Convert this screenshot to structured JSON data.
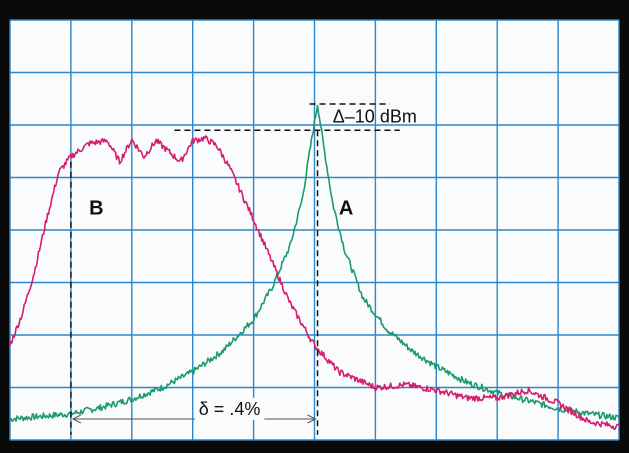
{
  "chart_data": {
    "type": "line",
    "grid": true,
    "xlim": [
      0,
      10
    ],
    "ylim": [
      0,
      8
    ],
    "x_divisions": 10,
    "y_divisions": 8,
    "series": [
      {
        "name": "A",
        "color": "#1d9a6c",
        "points": [
          [
            0.0,
            0.4
          ],
          [
            0.5,
            0.45
          ],
          [
            1.0,
            0.5
          ],
          [
            1.5,
            0.62
          ],
          [
            2.0,
            0.78
          ],
          [
            2.5,
            1.0
          ],
          [
            3.0,
            1.3
          ],
          [
            3.5,
            1.7
          ],
          [
            4.0,
            2.3
          ],
          [
            4.3,
            2.9
          ],
          [
            4.6,
            3.7
          ],
          [
            4.8,
            4.6
          ],
          [
            4.95,
            5.7
          ],
          [
            5.05,
            6.4
          ],
          [
            5.15,
            5.6
          ],
          [
            5.3,
            4.5
          ],
          [
            5.5,
            3.6
          ],
          [
            5.8,
            2.7
          ],
          [
            6.2,
            2.1
          ],
          [
            6.6,
            1.7
          ],
          [
            7.0,
            1.4
          ],
          [
            7.5,
            1.1
          ],
          [
            8.0,
            0.9
          ],
          [
            8.5,
            0.75
          ],
          [
            9.0,
            0.6
          ],
          [
            9.5,
            0.5
          ],
          [
            10.0,
            0.42
          ]
        ]
      },
      {
        "name": "B",
        "color": "#d61e6e",
        "points": [
          [
            0.0,
            1.8
          ],
          [
            0.2,
            2.4
          ],
          [
            0.4,
            3.2
          ],
          [
            0.6,
            4.2
          ],
          [
            0.8,
            5.1
          ],
          [
            1.0,
            5.4
          ],
          [
            1.3,
            5.65
          ],
          [
            1.6,
            5.7
          ],
          [
            1.8,
            5.3
          ],
          [
            2.0,
            5.72
          ],
          [
            2.2,
            5.4
          ],
          [
            2.4,
            5.7
          ],
          [
            2.6,
            5.5
          ],
          [
            2.8,
            5.3
          ],
          [
            3.0,
            5.7
          ],
          [
            3.2,
            5.75
          ],
          [
            3.4,
            5.6
          ],
          [
            3.6,
            5.2
          ],
          [
            3.8,
            4.7
          ],
          [
            4.0,
            4.2
          ],
          [
            4.3,
            3.4
          ],
          [
            4.6,
            2.6
          ],
          [
            5.0,
            1.8
          ],
          [
            5.4,
            1.3
          ],
          [
            6.0,
            1.0
          ],
          [
            6.5,
            1.05
          ],
          [
            7.0,
            0.95
          ],
          [
            7.5,
            0.8
          ],
          [
            8.0,
            0.8
          ],
          [
            8.5,
            0.95
          ],
          [
            9.0,
            0.7
          ],
          [
            9.5,
            0.35
          ],
          [
            10.0,
            0.25
          ]
        ]
      }
    ],
    "series_labels": [
      {
        "text": "B",
        "x": 1.3,
        "y": 4.3
      },
      {
        "text": "A",
        "x": 5.4,
        "y": 4.3
      }
    ],
    "annotations": [
      {
        "kind": "delta_level",
        "label": "Δ–10 dBm",
        "peak_x": 5.05,
        "peak_y": 6.4,
        "ref_y": 5.9,
        "ref_x1": 2.7,
        "ref_x2": 6.4,
        "text_x": 5.3,
        "text_y": 6.05
      },
      {
        "kind": "delta_width",
        "label": "δ = .4%",
        "x1": 1.0,
        "x2": 5.05,
        "y": 0.4,
        "text_x": 3.1,
        "text_y": 0.48
      }
    ]
  }
}
